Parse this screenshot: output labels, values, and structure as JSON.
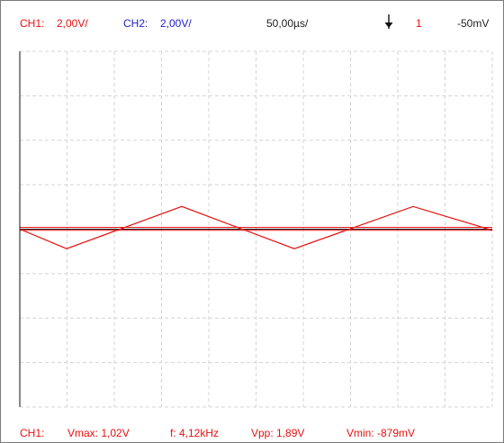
{
  "header": {
    "ch1_label": "CH1:",
    "ch1_scale": "2,00V/",
    "ch2_label": "CH2:",
    "ch2_scale": "2,00V/",
    "timebase": "50,00µs/",
    "trigger_icon": "trigger-falling-arrow-icon",
    "trigger_channel": "1",
    "trigger_level": "-50mV"
  },
  "footer": {
    "channel": "CH1:",
    "vmax": "Vmax: 1,02V",
    "freq": "f: 4,12kHz",
    "vpp": "Vpp: 1,89V",
    "vmin": "Vmin: -879mV"
  },
  "colors": {
    "ch1": "#e81010",
    "ch2": "#2020c8",
    "grid": "#d4d4d4",
    "axis": "#111111"
  },
  "chart_data": {
    "type": "line",
    "x_unit": "µs",
    "y_unit": "V",
    "xlim": [
      0,
      525
    ],
    "ylim": [
      -8,
      8
    ],
    "series": [
      {
        "name": "CH1",
        "x": [
          0,
          52,
          180,
          305,
          437,
          525
        ],
        "y": [
          0.0,
          -0.88,
          1.02,
          -0.88,
          1.02,
          -0.05
        ]
      }
    ],
    "reference_lines": [
      {
        "y": 0.08,
        "color": "#e81010"
      },
      {
        "y": -0.05,
        "color": "#e81010"
      },
      {
        "y": 0.0,
        "color": "#111111"
      }
    ]
  }
}
